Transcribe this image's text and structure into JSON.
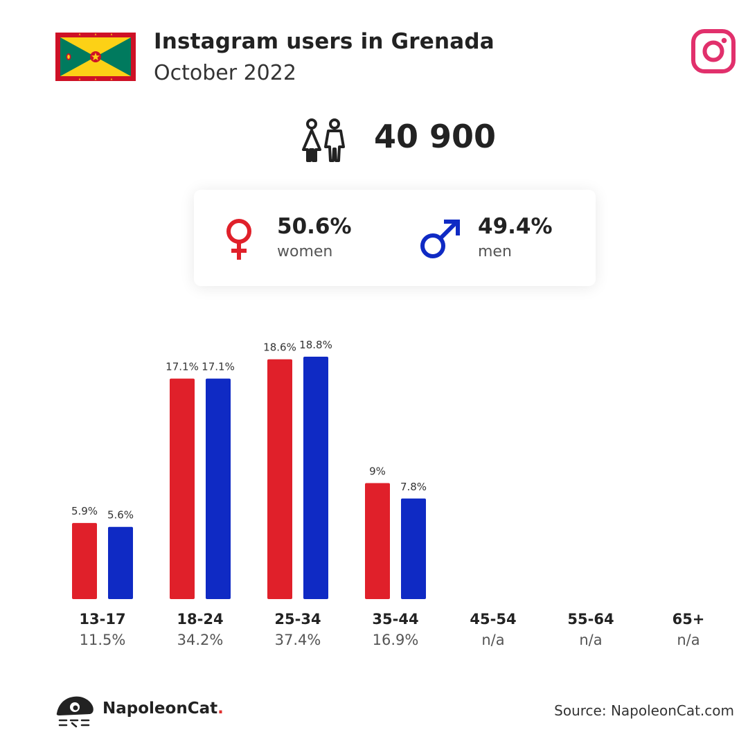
{
  "header": {
    "title": "Instagram users in Grenada",
    "subtitle": "October 2022"
  },
  "total_users": "40 900",
  "gender": {
    "women": {
      "pct": "50.6%",
      "label": "women",
      "color": "#e0202a"
    },
    "men": {
      "pct": "49.4%",
      "label": "men",
      "color": "#0f2ac4"
    }
  },
  "chart_data": {
    "type": "bar",
    "categories": [
      "13-17",
      "18-24",
      "25-34",
      "35-44",
      "45-54",
      "55-64",
      "65+"
    ],
    "category_shares": [
      "11.5%",
      "34.2%",
      "37.4%",
      "16.9%",
      "n/a",
      "n/a",
      "n/a"
    ],
    "series": [
      {
        "values": [
          5.9,
          17.1,
          18.6,
          9,
          null,
          null,
          null
        ],
        "labels": [
          "5.9%",
          "17.1%",
          "18.6%",
          "9%",
          "",
          "",
          ""
        ],
        "color": "#e0202a"
      },
      {
        "values": [
          5.6,
          17.1,
          18.8,
          7.8,
          null,
          null,
          null
        ],
        "labels": [
          "5.6%",
          "17.1%",
          "18.8%",
          "7.8%",
          "",
          "",
          ""
        ],
        "color": "#0f2ac4"
      }
    ],
    "ylim": [
      0,
      18.8
    ],
    "grid": false,
    "legend": "none"
  },
  "footer": {
    "brand": "NapoleonCat",
    "brand_dot": ".",
    "source": "Source: NapoleonCat.com"
  },
  "icons": {
    "flag": "grenada-flag-icon",
    "instagram": "instagram-icon",
    "users": "users-icon",
    "female": "female-symbol-icon",
    "male": "male-symbol-icon",
    "logo": "napoleoncat-logo-icon"
  },
  "colors": {
    "instagram": "#e1306c"
  }
}
